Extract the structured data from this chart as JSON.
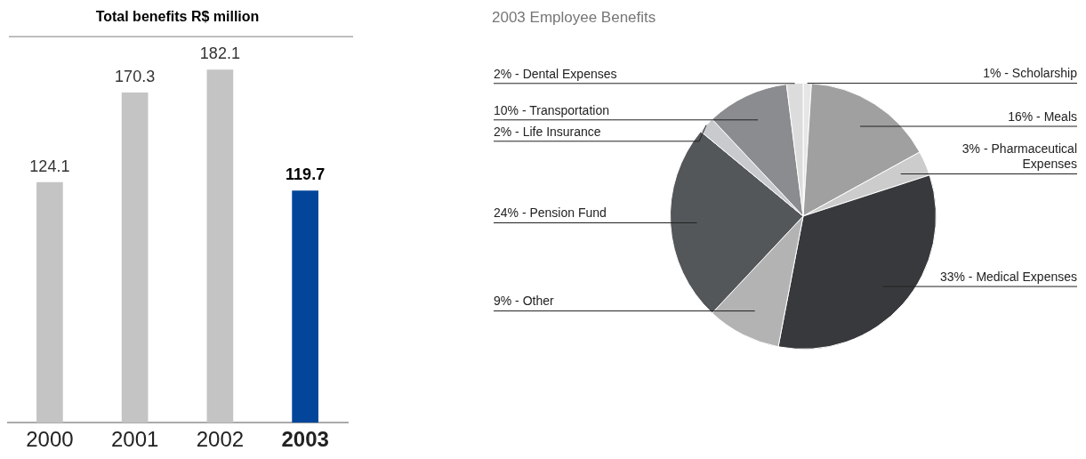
{
  "chart_data": [
    {
      "type": "bar",
      "title": "Total benefits R$ million",
      "categories": [
        "2000",
        "2001",
        "2002",
        "2003"
      ],
      "values": [
        124.1,
        170.3,
        182.1,
        119.7
      ],
      "colors": [
        "#c4c4c4",
        "#c4c4c4",
        "#c4c4c4",
        "#03459a"
      ],
      "data_labels": true,
      "legend": false,
      "grid": false
    },
    {
      "type": "pie",
      "title": "2003 Employee Benefits",
      "categories": [
        "1% - Scholarship",
        "16% - Meals",
        "3% - Pharmaceutical Expenses",
        "33% - Medical Expenses",
        "9% - Other",
        "24% - Pension Fund",
        "2% - Life Insurance",
        "10% - Transportation",
        "2% - Dental Expenses"
      ],
      "values": [
        1,
        16,
        3,
        33,
        9,
        24,
        2,
        10,
        2
      ],
      "colors": [
        "#e6e6e6",
        "#a0a0a0",
        "#cccccc",
        "#38393c",
        "#b3b3b3",
        "#545759",
        "#c8cacd",
        "#8a8c90",
        "#dcdcdc"
      ],
      "legend": false
    }
  ]
}
